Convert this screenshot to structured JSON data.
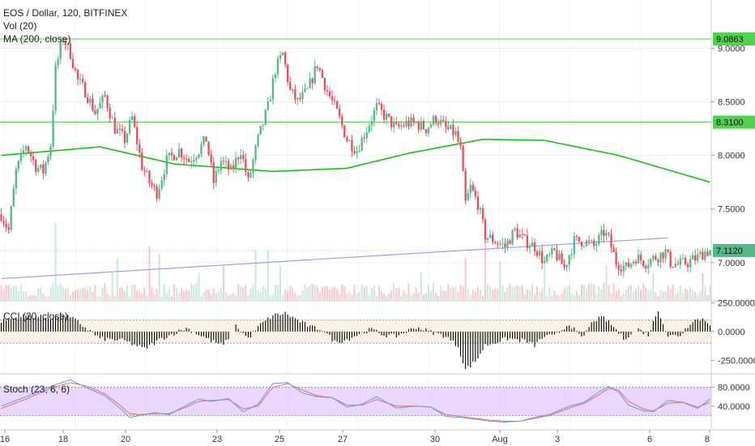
{
  "header": {
    "title": "EOS / Dollar, 120, BITFINEX",
    "vol_label": "Vol (20)",
    "ma_label": "MA (200, close)",
    "cci_label": "CCI (20, close)",
    "stoch_label": "Stoch (23, 6, 6)"
  },
  "colors": {
    "up": "#53b987",
    "down": "#eb4d5c",
    "ma": "#00c800",
    "hline": "#4cd44c",
    "trendline": "#9c9cf0",
    "stoch_k": "#5b9cf6",
    "stoch_d": "#f26c5b",
    "stoch_band": "#e1c9fb"
  },
  "chart_data": [
    {
      "type": "candlestick",
      "title": "EOS / Dollar, 120, BITFINEX",
      "ylim": [
        6.65,
        9.45
      ],
      "y_ticks": [
        7.0,
        7.5,
        8.0,
        8.5,
        9.0
      ],
      "y_tick_labels": [
        "7.0000",
        "7.5000",
        "8.0000",
        "8.5000",
        "9.0000"
      ],
      "x_tick_labels": [
        "16",
        "18",
        "20",
        "23",
        "25",
        "27",
        "30",
        "Aug",
        "3",
        "6",
        "8"
      ],
      "price_anchors": [
        [
          0,
          7.45
        ],
        [
          3,
          7.3
        ],
        [
          6,
          7.85
        ],
        [
          10,
          8.1
        ],
        [
          14,
          7.9
        ],
        [
          17,
          7.85
        ],
        [
          20,
          8.1
        ],
        [
          22,
          8.8
        ],
        [
          25,
          9.1
        ],
        [
          28,
          8.95
        ],
        [
          31,
          8.7
        ],
        [
          34,
          8.6
        ],
        [
          38,
          8.4
        ],
        [
          42,
          8.55
        ],
        [
          46,
          8.25
        ],
        [
          50,
          8.15
        ],
        [
          53,
          8.35
        ],
        [
          57,
          7.9
        ],
        [
          60,
          7.75
        ],
        [
          63,
          7.65
        ],
        [
          67,
          7.95
        ],
        [
          72,
          8.05
        ],
        [
          76,
          7.95
        ],
        [
          80,
          8.05
        ],
        [
          83,
          8.15
        ],
        [
          86,
          7.75
        ],
        [
          89,
          7.95
        ],
        [
          93,
          7.85
        ],
        [
          97,
          8.05
        ],
        [
          100,
          7.75
        ],
        [
          104,
          8.15
        ],
        [
          108,
          8.45
        ],
        [
          111,
          8.8
        ],
        [
          114,
          8.95
        ],
        [
          117,
          8.6
        ],
        [
          120,
          8.5
        ],
        [
          124,
          8.6
        ],
        [
          128,
          8.85
        ],
        [
          132,
          8.6
        ],
        [
          136,
          8.4
        ],
        [
          140,
          8.15
        ],
        [
          144,
          8.05
        ],
        [
          148,
          8.25
        ],
        [
          152,
          8.45
        ],
        [
          156,
          8.35
        ],
        [
          160,
          8.25
        ],
        [
          164,
          8.3
        ],
        [
          168,
          8.3
        ],
        [
          172,
          8.25
        ],
        [
          176,
          8.35
        ],
        [
          180,
          8.25
        ],
        [
          184,
          8.2
        ],
        [
          186,
          8.05
        ],
        [
          188,
          7.55
        ],
        [
          190,
          7.7
        ],
        [
          193,
          7.55
        ],
        [
          196,
          7.25
        ],
        [
          200,
          7.2
        ],
        [
          204,
          7.15
        ],
        [
          208,
          7.3
        ],
        [
          212,
          7.2
        ],
        [
          216,
          7.15
        ],
        [
          220,
          7.0
        ],
        [
          224,
          7.1
        ],
        [
          228,
          6.95
        ],
        [
          232,
          7.2
        ],
        [
          236,
          7.2
        ],
        [
          240,
          7.15
        ],
        [
          244,
          7.28
        ],
        [
          246,
          7.22
        ],
        [
          249,
          7.0
        ],
        [
          253,
          6.95
        ],
        [
          257,
          7.05
        ],
        [
          261,
          7.0
        ],
        [
          265,
          7.05
        ],
        [
          269,
          7.1
        ],
        [
          271,
          7.0
        ],
        [
          274,
          6.98
        ],
        [
          278,
          7.0
        ],
        [
          282,
          7.05
        ],
        [
          285,
          7.1
        ],
        [
          287,
          7.11
        ]
      ],
      "ma": {
        "name": "MA (200, close)",
        "values": [
          [
            0,
            8.0
          ],
          [
            40,
            8.08
          ],
          [
            70,
            7.92
          ],
          [
            110,
            7.85
          ],
          [
            140,
            7.88
          ],
          [
            165,
            8.02
          ],
          [
            195,
            8.15
          ],
          [
            220,
            8.14
          ],
          [
            250,
            8.0
          ],
          [
            287,
            7.75
          ]
        ]
      },
      "horizontal_levels": [
        {
          "value": 9.0863,
          "label": "9.0863"
        },
        {
          "value": 8.31,
          "label": "8.3100"
        }
      ],
      "last_price": {
        "value": 7.112,
        "label": "7.1120"
      },
      "trendline": [
        [
          0,
          6.85
        ],
        [
          270,
          7.23
        ]
      ],
      "volume": {
        "name": "Vol (20)",
        "base_level": 0.32,
        "spikes": [
          [
            22,
            1.0
          ],
          [
            45,
            0.35
          ],
          [
            47,
            0.55
          ],
          [
            60,
            0.7
          ],
          [
            64,
            0.6
          ],
          [
            80,
            0.35
          ],
          [
            90,
            0.45
          ],
          [
            103,
            0.65
          ],
          [
            108,
            0.65
          ],
          [
            113,
            0.45
          ],
          [
            170,
            0.35
          ],
          [
            188,
            0.55
          ],
          [
            196,
            0.9
          ],
          [
            202,
            0.5
          ],
          [
            220,
            0.55
          ],
          [
            245,
            0.45
          ],
          [
            264,
            0.35
          ],
          [
            284,
            0.35
          ]
        ]
      }
    },
    {
      "type": "bar",
      "name": "CCI (20, close)",
      "ylim": [
        -360,
        260
      ],
      "y_tick_labels": [
        "250.0000",
        "0.0000",
        "-250.0000"
      ],
      "band": [
        -100,
        100
      ],
      "anchors": [
        [
          0,
          90
        ],
        [
          10,
          140
        ],
        [
          20,
          120
        ],
        [
          25,
          150
        ],
        [
          30,
          100
        ],
        [
          40,
          -60
        ],
        [
          50,
          -80
        ],
        [
          58,
          -150
        ],
        [
          65,
          -60
        ],
        [
          75,
          30
        ],
        [
          85,
          -80
        ],
        [
          90,
          -120
        ],
        [
          95,
          50
        ],
        [
          100,
          -60
        ],
        [
          105,
          60
        ],
        [
          110,
          140
        ],
        [
          115,
          160
        ],
        [
          120,
          100
        ],
        [
          125,
          40
        ],
        [
          130,
          20
        ],
        [
          135,
          -90
        ],
        [
          140,
          -70
        ],
        [
          145,
          -20
        ],
        [
          150,
          20
        ],
        [
          155,
          -30
        ],
        [
          160,
          -40
        ],
        [
          168,
          40
        ],
        [
          175,
          -10
        ],
        [
          180,
          -40
        ],
        [
          185,
          -130
        ],
        [
          188,
          -330
        ],
        [
          192,
          -260
        ],
        [
          196,
          -120
        ],
        [
          205,
          -60
        ],
        [
          212,
          -80
        ],
        [
          216,
          -120
        ],
        [
          220,
          -40
        ],
        [
          224,
          -40
        ],
        [
          230,
          70
        ],
        [
          235,
          -60
        ],
        [
          240,
          100
        ],
        [
          244,
          120
        ],
        [
          248,
          40
        ],
        [
          252,
          -60
        ],
        [
          258,
          20
        ],
        [
          262,
          -30
        ],
        [
          266,
          190
        ],
        [
          270,
          -40
        ],
        [
          275,
          -30
        ],
        [
          280,
          100
        ],
        [
          284,
          110
        ],
        [
          287,
          70
        ]
      ]
    },
    {
      "type": "line",
      "name": "Stoch (23, 6, 6)",
      "ylim": [
        0,
        100
      ],
      "y_tick_labels": [
        "80.0000",
        "40.0000"
      ],
      "band": [
        20,
        80
      ],
      "k_anchors": [
        [
          0,
          40
        ],
        [
          10,
          60
        ],
        [
          20,
          82
        ],
        [
          28,
          96
        ],
        [
          35,
          78
        ],
        [
          42,
          62
        ],
        [
          48,
          36
        ],
        [
          52,
          16
        ],
        [
          56,
          20
        ],
        [
          62,
          26
        ],
        [
          68,
          22
        ],
        [
          75,
          42
        ],
        [
          80,
          55
        ],
        [
          85,
          50
        ],
        [
          92,
          56
        ],
        [
          98,
          28
        ],
        [
          104,
          44
        ],
        [
          110,
          88
        ],
        [
          116,
          90
        ],
        [
          122,
          68
        ],
        [
          128,
          60
        ],
        [
          134,
          58
        ],
        [
          140,
          38
        ],
        [
          146,
          44
        ],
        [
          152,
          60
        ],
        [
          160,
          36
        ],
        [
          168,
          40
        ],
        [
          174,
          38
        ],
        [
          180,
          18
        ],
        [
          186,
          16
        ],
        [
          192,
          12
        ],
        [
          198,
          8
        ],
        [
          204,
          6
        ],
        [
          210,
          8
        ],
        [
          216,
          16
        ],
        [
          222,
          22
        ],
        [
          230,
          40
        ],
        [
          236,
          48
        ],
        [
          242,
          70
        ],
        [
          246,
          82
        ],
        [
          250,
          70
        ],
        [
          254,
          42
        ],
        [
          260,
          30
        ],
        [
          264,
          28
        ],
        [
          270,
          52
        ],
        [
          276,
          48
        ],
        [
          282,
          35
        ],
        [
          287,
          55
        ]
      ],
      "d_anchors": [
        [
          0,
          35
        ],
        [
          10,
          55
        ],
        [
          20,
          78
        ],
        [
          28,
          90
        ],
        [
          35,
          82
        ],
        [
          42,
          66
        ],
        [
          48,
          42
        ],
        [
          52,
          24
        ],
        [
          56,
          22
        ],
        [
          62,
          24
        ],
        [
          68,
          24
        ],
        [
          75,
          38
        ],
        [
          80,
          50
        ],
        [
          85,
          52
        ],
        [
          92,
          54
        ],
        [
          98,
          34
        ],
        [
          104,
          40
        ],
        [
          110,
          80
        ],
        [
          116,
          88
        ],
        [
          122,
          74
        ],
        [
          128,
          62
        ],
        [
          134,
          58
        ],
        [
          140,
          42
        ],
        [
          146,
          42
        ],
        [
          152,
          54
        ],
        [
          160,
          40
        ],
        [
          168,
          40
        ],
        [
          174,
          38
        ],
        [
          180,
          22
        ],
        [
          186,
          18
        ],
        [
          192,
          14
        ],
        [
          198,
          10
        ],
        [
          204,
          8
        ],
        [
          210,
          8
        ],
        [
          216,
          14
        ],
        [
          222,
          20
        ],
        [
          230,
          36
        ],
        [
          236,
          46
        ],
        [
          242,
          64
        ],
        [
          246,
          78
        ],
        [
          250,
          74
        ],
        [
          254,
          50
        ],
        [
          260,
          34
        ],
        [
          264,
          30
        ],
        [
          270,
          46
        ],
        [
          276,
          48
        ],
        [
          282,
          38
        ],
        [
          287,
          48
        ]
      ]
    }
  ]
}
